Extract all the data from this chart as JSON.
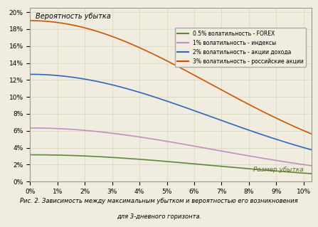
{
  "title_y_label": "Вероятность убытка",
  "x_label": "Размер убытка",
  "caption_line1": "Рис. 2. Зависимость между максимальным убытком и вероятностью его возникновения",
  "caption_line2": "для 3-дневного горизонта.",
  "background_color": "#f0ece0",
  "plot_bg_color": "#f0ece0",
  "grid_color": "#ccccaa",
  "x_ticks": [
    0,
    0.01,
    0.02,
    0.03,
    0.04,
    0.05,
    0.06,
    0.07,
    0.08,
    0.09,
    0.1
  ],
  "x_tick_labels": [
    "0%",
    "1%",
    "2%",
    "3%",
    "4%",
    "5%",
    "6%",
    "7%",
    "8%",
    "9%",
    "10%"
  ],
  "y_ticks": [
    0,
    0.02,
    0.04,
    0.06,
    0.08,
    0.1,
    0.12,
    0.14,
    0.16,
    0.18,
    0.2
  ],
  "y_tick_labels": [
    "0%",
    "2%",
    "4%",
    "6%",
    "8%",
    "10%",
    "12%",
    "14%",
    "16%",
    "18%",
    "20%"
  ],
  "series": [
    {
      "label": "0.5% волатильность - FOREX",
      "color": "#5a8a3a",
      "volatility": 0.005
    },
    {
      "label": "1% волатильность - индексы",
      "color": "#c090c0",
      "volatility": 0.01
    },
    {
      "label": "2% волатильность - акции дохода",
      "color": "#3366bb",
      "volatility": 0.02
    },
    {
      "label": "3% волатильность - российские акции",
      "color": "#cc5500",
      "volatility": 0.03
    }
  ],
  "ylim": [
    0,
    0.205
  ],
  "xlim": [
    0,
    0.103
  ],
  "border_color": "#999988"
}
